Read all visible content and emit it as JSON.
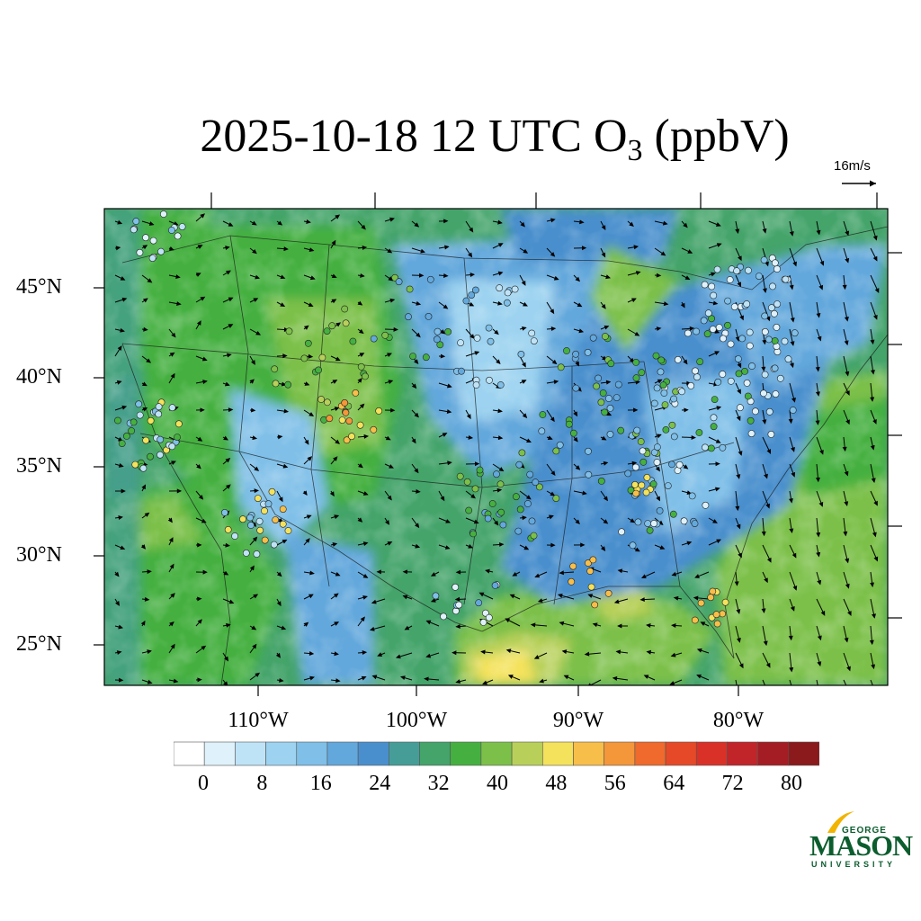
{
  "title": {
    "main": "2025-10-18 12 UTC O",
    "subscript": "3",
    "units": " (ppbV)"
  },
  "wind_reference": {
    "label": "16m/s",
    "speed_ms": 16
  },
  "map": {
    "lat_labels": [
      "45°N",
      "40°N",
      "35°N",
      "30°N",
      "25°N"
    ],
    "lon_labels": [
      "110°W",
      "100°W",
      "90°W",
      "80°W"
    ],
    "lat_values": [
      45,
      40,
      35,
      30,
      25
    ],
    "lon_values": [
      -110,
      -100,
      -90,
      -80
    ]
  },
  "colorbar": {
    "levels": [
      0,
      4,
      8,
      12,
      16,
      20,
      24,
      28,
      32,
      36,
      40,
      44,
      48,
      52,
      56,
      60,
      64,
      68,
      72,
      76,
      80
    ],
    "labels": [
      "0",
      "8",
      "16",
      "24",
      "32",
      "40",
      "48",
      "56",
      "64",
      "72",
      "80"
    ],
    "colors": [
      "#ffffff",
      "#dff1fb",
      "#bfe3f6",
      "#9dd3f0",
      "#7fbfe8",
      "#63a8dc",
      "#4a8fcd",
      "#469d98",
      "#44a46a",
      "#45b040",
      "#7cc04a",
      "#b8d05a",
      "#f4e25c",
      "#f8be4a",
      "#f4963a",
      "#ef6a2c",
      "#e64928",
      "#d93127",
      "#c1252a",
      "#a41d24",
      "#8a1a1c"
    ]
  },
  "logo": {
    "top": "GEORGE",
    "main": "MASON",
    "sub": "UNIVERSITY",
    "color": "#0b5d2e",
    "accent": "#f2b400"
  }
}
